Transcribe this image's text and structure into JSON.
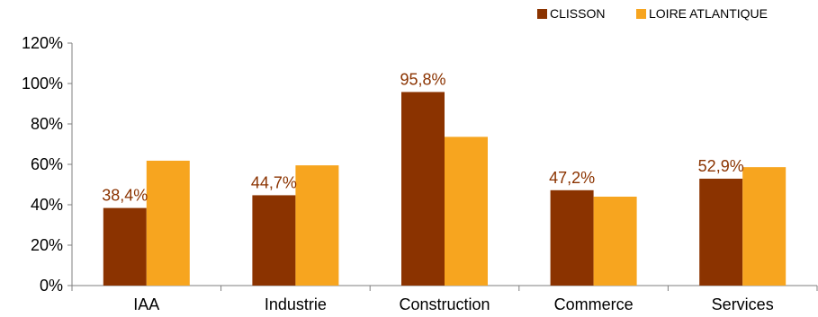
{
  "chart_data": {
    "type": "bar",
    "categories": [
      "IAA",
      "Industrie",
      "Construction",
      "Commerce",
      "Services"
    ],
    "series": [
      {
        "name": "CLISSON",
        "values": [
          38.4,
          44.7,
          95.8,
          47.2,
          52.9
        ],
        "color": "#8B3300"
      },
      {
        "name": "LOIRE ATLANTIQUE",
        "values": [
          61.8,
          59.5,
          73.6,
          44.0,
          58.6
        ],
        "color": "#F7A51F"
      }
    ],
    "data_labels": [
      "38,4%",
      "44,7%",
      "95,8%",
      "47,2%",
      "52,9%"
    ],
    "data_label_color": "#8B3300",
    "y_ticks": [
      0,
      20,
      40,
      60,
      80,
      100,
      120
    ],
    "y_tick_labels": [
      "0%",
      "20%",
      "40%",
      "60%",
      "80%",
      "100%",
      "120%"
    ],
    "ylim": [
      0,
      120
    ],
    "grid": false,
    "legend_position": "top-right",
    "title": "",
    "xlabel": "",
    "ylabel": ""
  }
}
